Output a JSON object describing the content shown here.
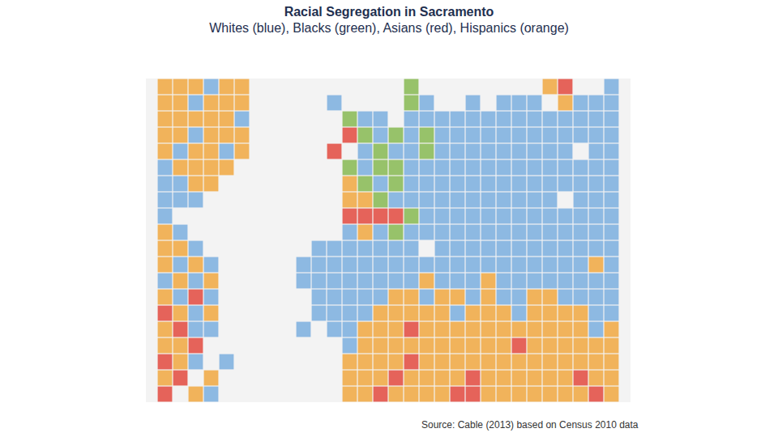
{
  "chart_data": {
    "type": "map",
    "title": "Racial Segregation in Sacramento",
    "subtitle": "Whites (blue), Blacks (green), Asians (red), Hispanics (orange)",
    "source": "Source: Cable (2013) based on Census 2010 data",
    "tick_labels": false,
    "series": [
      {
        "name": "Whites",
        "color": "#6fa8dc"
      },
      {
        "name": "Blacks",
        "color": "#7cb342"
      },
      {
        "name": "Asians",
        "color": "#e03a2e"
      },
      {
        "name": "Hispanics",
        "color": "#f0a030"
      }
    ],
    "cells": [
      [
        3,
        3,
        3,
        0,
        3,
        3,
        null,
        null,
        null,
        null,
        null,
        null,
        null,
        null,
        null,
        null,
        1,
        null,
        null,
        null,
        null,
        null,
        null,
        null,
        null,
        3,
        2,
        null,
        null,
        0
      ],
      [
        3,
        3,
        0,
        3,
        3,
        3,
        null,
        null,
        null,
        null,
        null,
        0,
        null,
        null,
        null,
        null,
        1,
        0,
        null,
        null,
        0,
        null,
        0,
        0,
        0,
        null,
        3,
        0,
        0,
        0
      ],
      [
        3,
        3,
        3,
        3,
        3,
        0,
        null,
        null,
        null,
        null,
        null,
        null,
        1,
        0,
        0,
        null,
        0,
        0,
        0,
        0,
        0,
        0,
        0,
        0,
        0,
        0,
        0,
        0,
        0,
        0
      ],
      [
        3,
        3,
        0,
        3,
        3,
        3,
        null,
        null,
        null,
        null,
        null,
        null,
        2,
        1,
        0,
        1,
        0,
        1,
        0,
        0,
        0,
        0,
        0,
        0,
        0,
        0,
        0,
        0,
        0,
        0
      ],
      [
        3,
        0,
        3,
        3,
        0,
        3,
        null,
        null,
        null,
        null,
        null,
        2,
        null,
        0,
        1,
        0,
        0,
        1,
        0,
        0,
        0,
        0,
        0,
        0,
        0,
        0,
        0,
        null,
        0,
        0
      ],
      [
        0,
        3,
        3,
        3,
        3,
        null,
        null,
        null,
        null,
        null,
        null,
        null,
        1,
        0,
        1,
        1,
        0,
        0,
        0,
        0,
        0,
        0,
        0,
        0,
        0,
        0,
        0,
        0,
        0,
        0
      ],
      [
        0,
        0,
        3,
        3,
        null,
        null,
        null,
        null,
        null,
        null,
        null,
        null,
        3,
        1,
        0,
        1,
        0,
        0,
        0,
        0,
        0,
        0,
        0,
        0,
        0,
        0,
        0,
        0,
        0,
        0
      ],
      [
        0,
        0,
        0,
        null,
        null,
        null,
        null,
        null,
        null,
        null,
        null,
        null,
        3,
        3,
        1,
        0,
        0,
        0,
        0,
        0,
        0,
        0,
        0,
        0,
        0,
        0,
        null,
        0,
        0,
        0
      ],
      [
        0,
        null,
        null,
        null,
        null,
        null,
        null,
        null,
        null,
        null,
        null,
        null,
        2,
        2,
        2,
        2,
        1,
        0,
        0,
        0,
        0,
        0,
        0,
        0,
        0,
        0,
        0,
        0,
        0,
        0
      ],
      [
        3,
        0,
        null,
        null,
        null,
        null,
        null,
        null,
        null,
        null,
        null,
        null,
        0,
        3,
        0,
        1,
        0,
        0,
        0,
        0,
        0,
        0,
        0,
        0,
        0,
        0,
        0,
        0,
        0,
        0
      ],
      [
        3,
        3,
        0,
        null,
        null,
        null,
        null,
        null,
        null,
        null,
        0,
        0,
        0,
        0,
        0,
        0,
        0,
        null,
        0,
        0,
        0,
        0,
        0,
        0,
        0,
        0,
        0,
        0,
        0,
        0
      ],
      [
        3,
        0,
        3,
        0,
        null,
        null,
        null,
        null,
        null,
        0,
        0,
        0,
        0,
        0,
        0,
        0,
        0,
        0,
        0,
        0,
        0,
        0,
        0,
        0,
        0,
        0,
        0,
        0,
        3,
        0
      ],
      [
        0,
        3,
        0,
        3,
        null,
        null,
        null,
        null,
        null,
        0,
        0,
        0,
        0,
        0,
        0,
        0,
        0,
        3,
        0,
        0,
        0,
        3,
        0,
        0,
        0,
        0,
        0,
        0,
        0,
        0
      ],
      [
        3,
        0,
        2,
        0,
        null,
        null,
        null,
        null,
        null,
        null,
        0,
        0,
        0,
        0,
        0,
        3,
        3,
        0,
        3,
        3,
        0,
        3,
        0,
        0,
        3,
        3,
        0,
        0,
        0,
        0
      ],
      [
        2,
        3,
        0,
        3,
        null,
        null,
        null,
        null,
        null,
        null,
        0,
        0,
        0,
        0,
        3,
        3,
        3,
        3,
        3,
        0,
        3,
        3,
        3,
        0,
        3,
        3,
        3,
        3,
        0,
        0
      ],
      [
        3,
        2,
        0,
        0,
        null,
        null,
        null,
        null,
        null,
        0,
        null,
        0,
        0,
        3,
        3,
        3,
        2,
        3,
        3,
        3,
        3,
        3,
        3,
        3,
        3,
        3,
        3,
        3,
        0,
        3
      ],
      [
        3,
        3,
        2,
        null,
        null,
        null,
        null,
        null,
        null,
        null,
        null,
        null,
        0,
        3,
        3,
        3,
        3,
        3,
        3,
        3,
        3,
        3,
        3,
        2,
        3,
        3,
        3,
        3,
        3,
        3
      ],
      [
        2,
        3,
        0,
        null,
        0,
        null,
        null,
        null,
        null,
        null,
        null,
        null,
        3,
        3,
        3,
        3,
        2,
        3,
        3,
        3,
        3,
        3,
        3,
        3,
        3,
        3,
        3,
        3,
        3,
        3
      ],
      [
        3,
        2,
        null,
        3,
        null,
        null,
        null,
        null,
        null,
        null,
        null,
        null,
        3,
        3,
        3,
        2,
        3,
        3,
        3,
        3,
        2,
        3,
        3,
        3,
        3,
        3,
        3,
        2,
        3,
        3
      ],
      [
        2,
        null,
        3,
        0,
        null,
        null,
        null,
        null,
        null,
        null,
        null,
        null,
        3,
        3,
        2,
        3,
        3,
        3,
        3,
        2,
        2,
        3,
        3,
        3,
        3,
        3,
        3,
        3,
        2,
        3
      ]
    ]
  }
}
